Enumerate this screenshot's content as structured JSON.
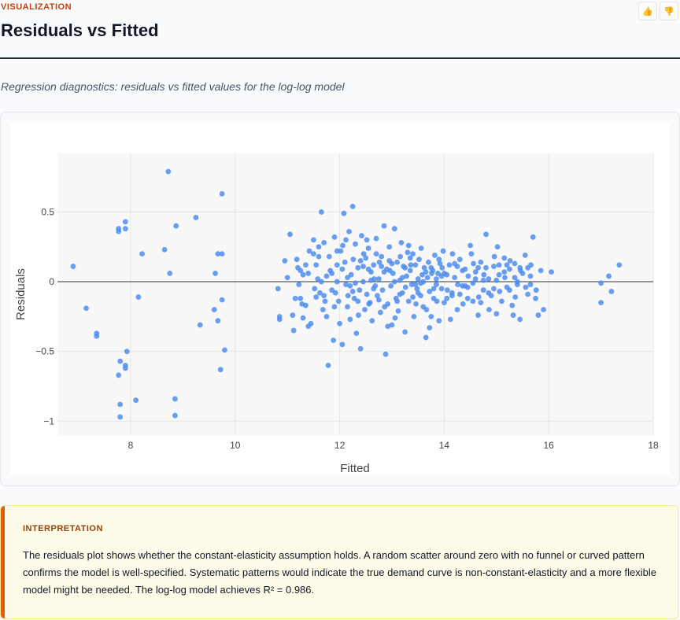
{
  "header": {
    "section_label": "VISUALIZATION",
    "title": "Residuals vs Fitted",
    "subtitle": "Regression diagnostics: residuals vs fitted values for the log-log model"
  },
  "feedback": {
    "like_icon": "thumbs-up-icon",
    "dislike_icon": "thumbs-down-icon"
  },
  "chart_data": {
    "type": "scatter",
    "title": "",
    "xlabel": "Fitted",
    "ylabel": "Residuals",
    "xlim": [
      6.6,
      18
    ],
    "ylim": [
      -1.1,
      0.92
    ],
    "x_ticks": [
      "8",
      "10",
      "12",
      "14",
      "16",
      "18"
    ],
    "y_ticks": [
      "−1",
      "−0.5",
      "0",
      "0.5"
    ],
    "x_tick_values": [
      8,
      10,
      12,
      14,
      16,
      18
    ],
    "y_tick_values": [
      -1,
      -0.5,
      0,
      0.5
    ],
    "reference_line_y": 0,
    "grid": true,
    "point_color": "#4f8df0",
    "points": [
      [
        6.9,
        0.11
      ],
      [
        7.15,
        -0.19
      ],
      [
        7.35,
        -0.37
      ],
      [
        7.35,
        -0.39
      ],
      [
        7.77,
        0.38
      ],
      [
        7.77,
        0.36
      ],
      [
        7.9,
        0.43
      ],
      [
        7.9,
        0.38
      ],
      [
        7.8,
        -0.57
      ],
      [
        7.9,
        -0.6
      ],
      [
        7.9,
        -0.62
      ],
      [
        7.93,
        -0.5
      ],
      [
        7.77,
        -0.67
      ],
      [
        7.8,
        -0.88
      ],
      [
        7.8,
        -0.97
      ],
      [
        8.1,
        -0.85
      ],
      [
        8.15,
        -0.11
      ],
      [
        8.22,
        0.2
      ],
      [
        8.65,
        0.23
      ],
      [
        8.75,
        0.06
      ],
      [
        8.72,
        0.79
      ],
      [
        8.87,
        0.4
      ],
      [
        8.85,
        -0.84
      ],
      [
        8.85,
        -0.96
      ],
      [
        9.25,
        0.46
      ],
      [
        9.33,
        -0.31
      ],
      [
        9.62,
        0.06
      ],
      [
        9.6,
        -0.2
      ],
      [
        9.67,
        -0.28
      ],
      [
        9.67,
        0.2
      ],
      [
        9.75,
        0.2
      ],
      [
        9.75,
        0.63
      ],
      [
        9.75,
        -0.13
      ],
      [
        9.72,
        -0.63
      ],
      [
        9.8,
        -0.49
      ],
      [
        10.82,
        -0.05
      ],
      [
        10.85,
        -0.25
      ],
      [
        10.85,
        -0.27
      ],
      [
        10.95,
        0.15
      ],
      [
        11.0,
        0.03
      ],
      [
        11.05,
        0.34
      ],
      [
        11.1,
        -0.24
      ],
      [
        11.12,
        -0.35
      ],
      [
        11.18,
        0.16
      ],
      [
        11.2,
        0.1
      ],
      [
        11.22,
        -0.02
      ],
      [
        11.25,
        -0.12
      ],
      [
        11.3,
        0.05
      ],
      [
        11.35,
        -0.17
      ],
      [
        11.4,
        -0.32
      ],
      [
        11.45,
        -0.3
      ],
      [
        11.5,
        0.3
      ],
      [
        11.55,
        0.12
      ],
      [
        11.58,
        0.02
      ],
      [
        11.62,
        -0.08
      ],
      [
        11.65,
        0.5
      ],
      [
        11.7,
        0.28
      ],
      [
        11.72,
        -0.14
      ],
      [
        11.75,
        -0.25
      ],
      [
        11.78,
        -0.6
      ],
      [
        11.8,
        0.18
      ],
      [
        11.85,
        0.06
      ],
      [
        11.88,
        -0.42
      ],
      [
        11.9,
        0.32
      ],
      [
        11.92,
        -0.08
      ],
      [
        11.95,
        0.0
      ],
      [
        12.0,
        -0.3
      ],
      [
        12.02,
        0.22
      ],
      [
        12.05,
        -0.45
      ],
      [
        12.08,
        0.49
      ],
      [
        12.1,
        0.14
      ],
      [
        12.12,
        -0.02
      ],
      [
        12.15,
        -0.18
      ],
      [
        12.18,
        0.36
      ],
      [
        12.2,
        -0.27
      ],
      [
        12.22,
        0.05
      ],
      [
        12.25,
        0.54
      ],
      [
        12.28,
        -0.12
      ],
      [
        12.3,
        0.27
      ],
      [
        12.32,
        -0.37
      ],
      [
        12.35,
        0.1
      ],
      [
        12.38,
        -0.06
      ],
      [
        12.4,
        -0.48
      ],
      [
        12.42,
        0.33
      ],
      [
        12.45,
        0.0
      ],
      [
        12.48,
        -0.2
      ],
      [
        12.5,
        0.17
      ],
      [
        12.52,
        -0.09
      ],
      [
        12.55,
        0.24
      ],
      [
        12.58,
        -0.15
      ],
      [
        12.6,
        0.07
      ],
      [
        12.62,
        -0.28
      ],
      [
        12.65,
        0.12
      ],
      [
        12.68,
        -0.03
      ],
      [
        12.7,
        0.31
      ],
      [
        12.72,
        -0.1
      ],
      [
        12.75,
        0.02
      ],
      [
        12.78,
        -0.22
      ],
      [
        12.8,
        0.18
      ],
      [
        12.82,
        -0.06
      ],
      [
        12.85,
        0.4
      ],
      [
        12.88,
        -0.52
      ],
      [
        12.9,
        0.09
      ],
      [
        12.92,
        -0.16
      ],
      [
        12.95,
        0.25
      ],
      [
        12.98,
        -0.03
      ],
      [
        13.0,
        -0.31
      ],
      [
        13.02,
        0.06
      ],
      [
        13.05,
        0.38
      ],
      [
        13.08,
        -0.12
      ],
      [
        13.1,
        0.14
      ],
      [
        13.12,
        -0.21
      ],
      [
        13.15,
        0.01
      ],
      [
        13.18,
        0.28
      ],
      [
        13.2,
        -0.08
      ],
      [
        13.22,
        0.11
      ],
      [
        13.25,
        -0.36
      ],
      [
        13.28,
        0.04
      ],
      [
        13.3,
        0.21
      ],
      [
        13.32,
        -0.14
      ],
      [
        13.35,
        0.08
      ],
      [
        13.38,
        -0.02
      ],
      [
        13.4,
        0.2
      ],
      [
        13.42,
        -0.25
      ],
      [
        13.45,
        0.12
      ],
      [
        13.48,
        -0.05
      ],
      [
        13.5,
        0.02
      ],
      [
        13.52,
        0.16
      ],
      [
        13.55,
        -0.1
      ],
      [
        13.58,
        0.05
      ],
      [
        13.6,
        -0.18
      ],
      [
        13.62,
        0.1
      ],
      [
        13.65,
        -0.4
      ],
      [
        13.68,
        0.03
      ],
      [
        13.7,
        0.14
      ],
      [
        13.72,
        -0.07
      ],
      [
        13.75,
        -0.25
      ],
      [
        13.78,
        0.08
      ],
      [
        13.8,
        -0.12
      ],
      [
        13.82,
        0.19
      ],
      [
        13.85,
        -0.02
      ],
      [
        13.88,
        0.06
      ],
      [
        13.9,
        -0.28
      ],
      [
        13.92,
        0.13
      ],
      [
        13.95,
        -0.05
      ],
      [
        13.98,
        0.22
      ],
      [
        14.0,
        -0.15
      ],
      [
        14.05,
        0.05
      ],
      [
        14.1,
        0.12
      ],
      [
        14.15,
        -0.08
      ],
      [
        14.2,
        0.03
      ],
      [
        14.25,
        -0.2
      ],
      [
        14.3,
        0.16
      ],
      [
        14.35,
        -0.03
      ],
      [
        14.4,
        0.09
      ],
      [
        14.45,
        -0.12
      ],
      [
        14.5,
        0.26
      ],
      [
        14.55,
        -0.01
      ],
      [
        14.6,
        0.07
      ],
      [
        14.65,
        -0.24
      ],
      [
        14.7,
        0.14
      ],
      [
        14.75,
        -0.06
      ],
      [
        14.8,
        0.34
      ],
      [
        14.85,
        0.02
      ],
      [
        14.9,
        -0.1
      ],
      [
        14.95,
        0.11
      ],
      [
        15.0,
        -0.23
      ],
      [
        15.05,
        0.05
      ],
      [
        15.1,
        -0.14
      ],
      [
        15.15,
        0.17
      ],
      [
        15.2,
        -0.04
      ],
      [
        15.25,
        0.09
      ],
      [
        15.3,
        -0.17
      ],
      [
        15.35,
        0.13
      ],
      [
        15.4,
        0.0
      ],
      [
        15.45,
        -0.27
      ],
      [
        15.5,
        0.06
      ],
      [
        15.55,
        0.19
      ],
      [
        15.6,
        -0.09
      ],
      [
        15.65,
        0.04
      ],
      [
        15.7,
        0.32
      ],
      [
        15.75,
        -0.12
      ],
      [
        15.8,
        -0.24
      ],
      [
        15.85,
        0.08
      ],
      [
        15.9,
        -0.2
      ],
      [
        16.05,
        0.07
      ],
      [
        17.0,
        -0.01
      ],
      [
        17.0,
        -0.15
      ],
      [
        17.15,
        0.04
      ],
      [
        17.2,
        -0.07
      ],
      [
        17.35,
        0.12
      ],
      [
        11.3,
        -0.26
      ],
      [
        11.42,
        0.22
      ],
      [
        11.52,
        -0.05
      ],
      [
        11.6,
        0.18
      ],
      [
        11.68,
        -0.2
      ],
      [
        11.82,
        0.08
      ],
      [
        11.98,
        -0.14
      ],
      [
        12.06,
        0.26
      ],
      [
        12.16,
        -0.1
      ],
      [
        12.26,
        0.16
      ],
      [
        12.36,
        -0.24
      ],
      [
        12.46,
        0.2
      ],
      [
        12.56,
        -0.16
      ],
      [
        12.66,
        0.02
      ],
      [
        12.76,
        0.14
      ],
      [
        12.86,
        -0.18
      ],
      [
        12.96,
        0.08
      ],
      [
        13.06,
        -0.26
      ],
      [
        13.16,
        0.18
      ],
      [
        13.26,
        -0.04
      ],
      [
        13.36,
        0.12
      ],
      [
        13.46,
        -0.16
      ],
      [
        13.56,
        0.24
      ],
      [
        13.66,
        -0.2
      ],
      [
        13.76,
        0.06
      ],
      [
        13.86,
        -0.14
      ],
      [
        13.96,
        0.1
      ],
      [
        14.06,
        -0.06
      ],
      [
        14.16,
        0.2
      ],
      [
        14.26,
        -0.02
      ],
      [
        14.36,
        -0.16
      ],
      [
        14.46,
        0.04
      ],
      [
        14.56,
        0.13
      ],
      [
        14.66,
        -0.11
      ],
      [
        14.76,
        0.05
      ],
      [
        14.86,
        -0.2
      ],
      [
        14.96,
        0.18
      ],
      [
        15.06,
        -0.07
      ],
      [
        15.16,
        0.03
      ],
      [
        15.26,
        0.15
      ],
      [
        15.36,
        -0.11
      ],
      [
        15.46,
        0.08
      ],
      [
        15.56,
        -0.04
      ],
      [
        15.66,
        0.12
      ],
      [
        15.76,
        -0.06
      ],
      [
        11.25,
        0.08
      ],
      [
        11.55,
        -0.11
      ],
      [
        11.75,
        0.04
      ],
      [
        11.95,
        0.12
      ],
      [
        12.15,
        0.03
      ],
      [
        12.35,
        -0.14
      ],
      [
        12.55,
        0.09
      ],
      [
        12.75,
        -0.13
      ],
      [
        12.95,
        0.15
      ],
      [
        13.15,
        -0.09
      ],
      [
        13.35,
        0.17
      ],
      [
        13.55,
        -0.01
      ],
      [
        13.75,
        0.1
      ],
      [
        13.95,
        0.04
      ],
      [
        14.15,
        -0.1
      ],
      [
        14.35,
        0.08
      ],
      [
        14.55,
        -0.14
      ],
      [
        14.75,
        0.01
      ],
      [
        14.95,
        -0.05
      ],
      [
        15.15,
        0.07
      ],
      [
        15.35,
        0.03
      ],
      [
        11.15,
        -0.12
      ],
      [
        11.35,
        0.12
      ],
      [
        11.65,
        0.0
      ],
      [
        11.85,
        -0.06
      ],
      [
        12.05,
        0.09
      ],
      [
        12.25,
        -0.07
      ],
      [
        12.45,
        0.11
      ],
      [
        12.65,
        -0.05
      ],
      [
        12.85,
        0.07
      ],
      [
        13.05,
        0.0
      ],
      [
        13.25,
        0.1
      ],
      [
        13.45,
        -0.02
      ],
      [
        13.65,
        0.07
      ],
      [
        13.85,
        0.02
      ],
      [
        14.05,
        -0.12
      ],
      [
        14.25,
        0.11
      ],
      [
        14.45,
        -0.04
      ],
      [
        14.65,
        0.1
      ],
      [
        14.85,
        -0.08
      ],
      [
        15.05,
        0.12
      ],
      [
        15.25,
        -0.06
      ],
      [
        15.45,
        0.1
      ],
      [
        15.65,
        -0.02
      ],
      [
        11.5,
        0.2
      ],
      [
        11.9,
        -0.18
      ],
      [
        12.3,
        -0.01
      ],
      [
        12.7,
        0.2
      ],
      [
        13.1,
        -0.14
      ],
      [
        13.5,
        -0.08
      ],
      [
        13.9,
        0.16
      ],
      [
        14.3,
        -0.09
      ],
      [
        14.7,
        -0.15
      ],
      [
        11.28,
        -0.16
      ],
      [
        11.6,
        0.25
      ],
      [
        12.12,
        0.3
      ],
      [
        12.52,
        0.3
      ],
      [
        12.92,
        -0.32
      ],
      [
        13.32,
        0.26
      ],
      [
        13.72,
        -0.33
      ],
      [
        14.12,
        -0.27
      ],
      [
        14.52,
        0.2
      ],
      [
        15.02,
        0.25
      ],
      [
        15.32,
        -0.24
      ],
      [
        11.4,
        0.06
      ],
      [
        11.7,
        -0.1
      ],
      [
        11.95,
        0.22
      ],
      [
        12.2,
        -0.03
      ],
      [
        12.4,
        0.15
      ],
      [
        12.6,
        0.01
      ],
      [
        12.8,
        0.11
      ],
      [
        13.0,
        0.13
      ],
      [
        13.2,
        0.03
      ],
      [
        13.4,
        -0.11
      ],
      [
        13.6,
        0.0
      ],
      [
        13.8,
        -0.05
      ],
      [
        14.0,
        0.06
      ],
      [
        14.2,
        0.13
      ],
      [
        14.4,
        -0.03
      ],
      [
        14.6,
        0.02
      ],
      [
        14.8,
        0.1
      ],
      [
        15.0,
        0.01
      ],
      [
        15.2,
        0.12
      ],
      [
        15.4,
        -0.02
      ],
      [
        15.6,
        0.1
      ]
    ]
  },
  "interpretation": {
    "heading": "INTERPRETATION",
    "text": "The residuals plot shows whether the constant-elasticity assumption holds. A random scatter around zero with no funnel or curved pattern confirms the model is well-specified. Systematic patterns would indicate the true demand curve is non-constant-elasticity and a more flexible model might be needed. The log-log model achieves R² = 0.986."
  }
}
